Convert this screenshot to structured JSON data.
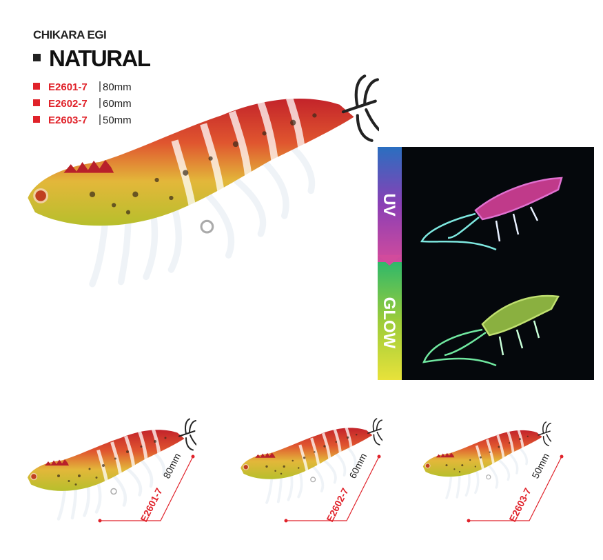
{
  "header": {
    "brand": "CHIKARA EGI",
    "series": "NATURAL"
  },
  "models": [
    {
      "code": "E2601-7",
      "size": "80mm"
    },
    {
      "code": "E2602-7",
      "size": "60mm"
    },
    {
      "code": "E2603-7",
      "size": "50mm"
    }
  ],
  "modes": [
    "UV",
    "GLOW"
  ],
  "thumbnails": [
    {
      "code": "E2601-7",
      "size": "80mm"
    },
    {
      "code": "E2602-7",
      "size": "60mm"
    },
    {
      "code": "E2603-7",
      "size": "50mm"
    }
  ]
}
